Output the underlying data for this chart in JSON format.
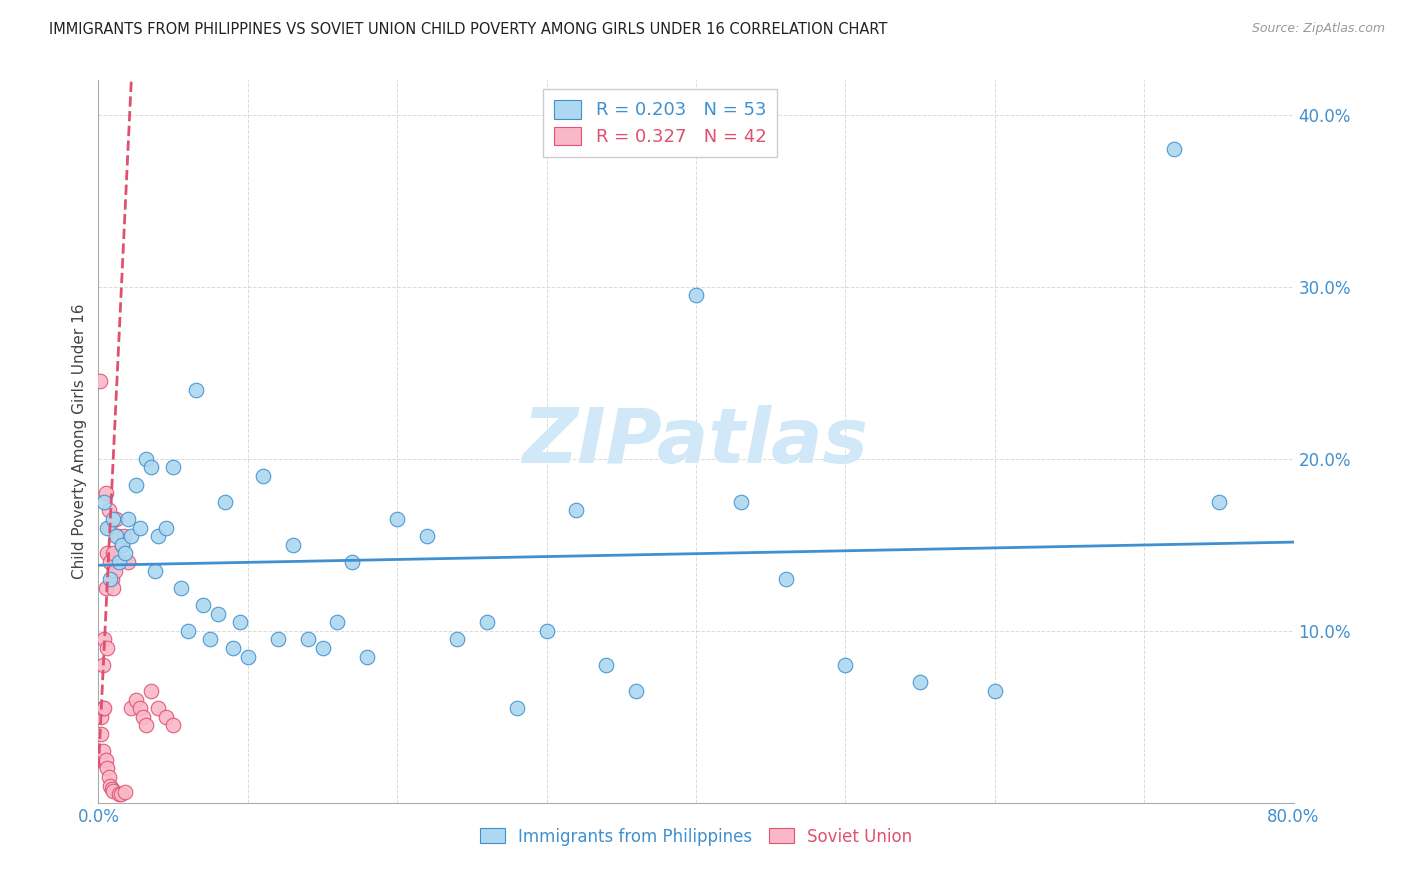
{
  "title": "IMMIGRANTS FROM PHILIPPINES VS SOVIET UNION CHILD POVERTY AMONG GIRLS UNDER 16 CORRELATION CHART",
  "source": "Source: ZipAtlas.com",
  "ylabel": "Child Poverty Among Girls Under 16",
  "xlim": [
    0,
    0.8
  ],
  "ylim": [
    0,
    0.42
  ],
  "philippines_R": 0.203,
  "philippines_N": 53,
  "soviet_R": 0.327,
  "soviet_N": 42,
  "philippines_color": "#ADD8F0",
  "soviet_color": "#F9B8C8",
  "trend_philippines_color": "#4090D0",
  "trend_soviet_color": "#E05070",
  "philippines_x": [
    0.004,
    0.006,
    0.008,
    0.01,
    0.012,
    0.014,
    0.016,
    0.018,
    0.02,
    0.022,
    0.025,
    0.028,
    0.032,
    0.035,
    0.038,
    0.04,
    0.045,
    0.05,
    0.055,
    0.06,
    0.065,
    0.07,
    0.075,
    0.08,
    0.085,
    0.09,
    0.095,
    0.1,
    0.11,
    0.12,
    0.13,
    0.14,
    0.15,
    0.16,
    0.17,
    0.18,
    0.2,
    0.22,
    0.24,
    0.26,
    0.28,
    0.3,
    0.32,
    0.34,
    0.36,
    0.4,
    0.43,
    0.46,
    0.5,
    0.55,
    0.6,
    0.72,
    0.75
  ],
  "philippines_y": [
    0.175,
    0.16,
    0.13,
    0.165,
    0.155,
    0.14,
    0.15,
    0.145,
    0.165,
    0.155,
    0.185,
    0.16,
    0.2,
    0.195,
    0.135,
    0.155,
    0.16,
    0.195,
    0.125,
    0.1,
    0.24,
    0.115,
    0.095,
    0.11,
    0.175,
    0.09,
    0.105,
    0.085,
    0.19,
    0.095,
    0.15,
    0.095,
    0.09,
    0.105,
    0.14,
    0.085,
    0.165,
    0.155,
    0.095,
    0.105,
    0.055,
    0.1,
    0.17,
    0.08,
    0.065,
    0.295,
    0.175,
    0.13,
    0.08,
    0.07,
    0.065,
    0.38,
    0.175
  ],
  "soviet_x": [
    0.001,
    0.002,
    0.002,
    0.003,
    0.003,
    0.003,
    0.004,
    0.004,
    0.005,
    0.005,
    0.005,
    0.006,
    0.006,
    0.006,
    0.007,
    0.007,
    0.007,
    0.008,
    0.008,
    0.009,
    0.009,
    0.01,
    0.01,
    0.01,
    0.011,
    0.012,
    0.013,
    0.014,
    0.015,
    0.016,
    0.017,
    0.018,
    0.02,
    0.022,
    0.025,
    0.028,
    0.03,
    0.032,
    0.035,
    0.04,
    0.045,
    0.05
  ],
  "soviet_y": [
    0.245,
    0.04,
    0.05,
    0.08,
    0.055,
    0.03,
    0.095,
    0.055,
    0.125,
    0.18,
    0.025,
    0.09,
    0.145,
    0.02,
    0.16,
    0.17,
    0.015,
    0.14,
    0.01,
    0.13,
    0.008,
    0.125,
    0.145,
    0.007,
    0.135,
    0.165,
    0.155,
    0.005,
    0.005,
    0.15,
    0.155,
    0.006,
    0.14,
    0.055,
    0.06,
    0.055,
    0.05,
    0.045,
    0.065,
    0.055,
    0.05,
    0.045
  ],
  "background_color": "#FFFFFF",
  "grid_color": "#CCCCCC",
  "title_color": "#222222",
  "axis_label_color": "#4090D0",
  "watermark_text": "ZIPatlas",
  "watermark_color": "#D0E8F8",
  "watermark_fontsize": 55
}
